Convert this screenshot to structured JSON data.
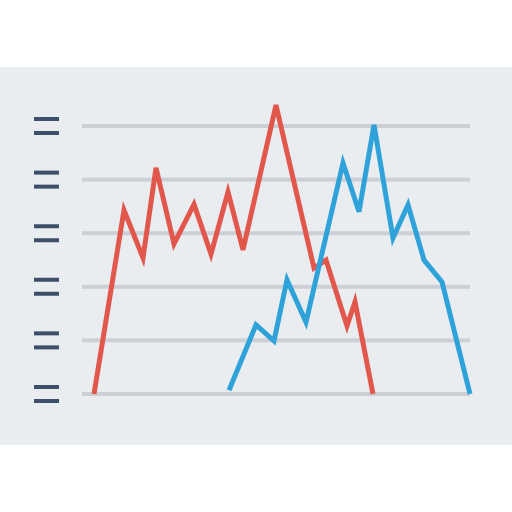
{
  "chart_data": {
    "type": "line",
    "xlim": [
      82,
      470
    ],
    "ylim": [
      0,
      5
    ],
    "yticks": [
      0,
      1,
      2,
      3,
      4,
      5
    ],
    "grid": true,
    "series": [
      {
        "color": "#e2574c",
        "x": [
          94,
          124,
          143,
          156,
          174,
          194,
          211,
          228,
          243,
          276,
          314,
          326,
          347,
          355,
          373
        ],
        "values": [
          0,
          3.43,
          2.54,
          4.22,
          2.8,
          3.54,
          2.61,
          3.77,
          2.69,
          5.39,
          2.35,
          2.5,
          1.27,
          1.72,
          0
        ]
      },
      {
        "color": "#2fa3d9",
        "x": [
          229,
          256,
          274,
          287,
          306,
          343,
          359,
          374,
          393,
          408,
          424,
          442,
          470
        ],
        "values": [
          0.07,
          1.29,
          0.99,
          2.13,
          1.34,
          4.31,
          3.4,
          5.02,
          2.91,
          3.53,
          2.5,
          2.09,
          0
        ]
      }
    ]
  }
}
